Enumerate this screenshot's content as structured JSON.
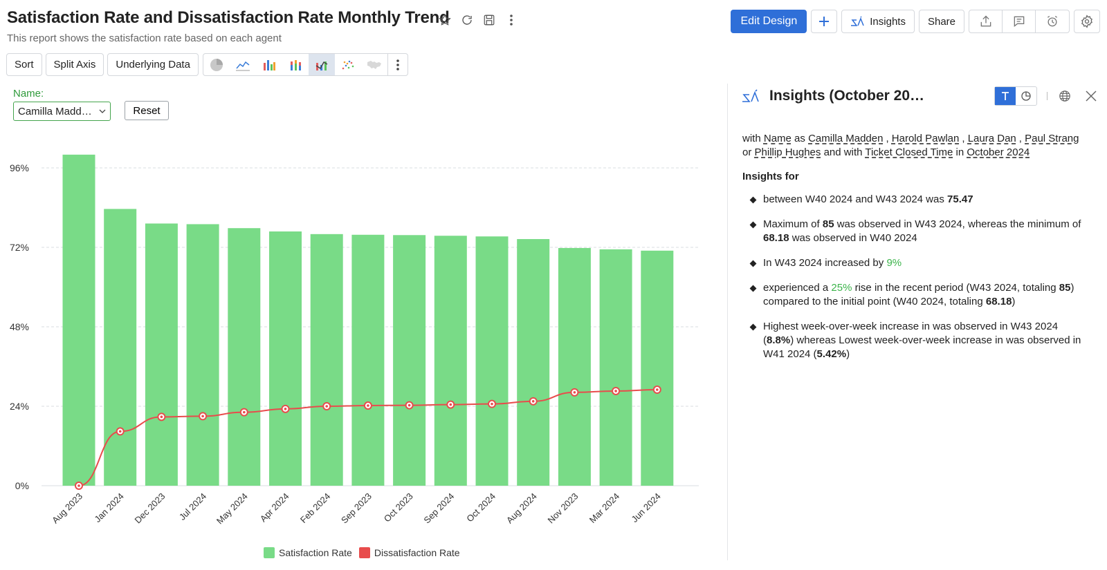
{
  "header": {
    "title": "Satisfaction Rate and Dissatisfaction Rate Monthly Trend",
    "subtitle": "This report shows the satisfaction rate based on each agent",
    "edit_design": "Edit Design",
    "add": "+",
    "insights": "Insights",
    "share": "Share"
  },
  "toolbar": {
    "sort": "Sort",
    "split_axis": "Split Axis",
    "underlying_data": "Underlying Data",
    "chart_types": [
      "pie-chart-icon",
      "line-chart-icon",
      "bar-chart-icon",
      "stacked-bar-chart-icon",
      "combo-chart-icon",
      "scatter-chart-icon",
      "map-chart-icon"
    ],
    "active_chart_type": "combo-chart-icon"
  },
  "filter": {
    "label": "Name:",
    "value": "Camilla Madd…",
    "reset": "Reset"
  },
  "chart_data": {
    "type": "bar",
    "categories": [
      "Aug 2023",
      "Jan 2024",
      "Dec 2023",
      "Jul 2024",
      "May 2024",
      "Apr 2024",
      "Feb 2024",
      "Sep 2023",
      "Oct 2023",
      "Sep 2024",
      "Oct 2024",
      "Aug 2024",
      "Nov 2023",
      "Mar 2024",
      "Jun 2024"
    ],
    "series": [
      {
        "name": "Satisfaction Rate",
        "type": "bar",
        "color": "#79db87",
        "values": [
          100,
          83.6,
          79.2,
          79.0,
          77.8,
          76.8,
          76.0,
          75.8,
          75.7,
          75.5,
          75.3,
          74.5,
          71.8,
          71.4,
          71.0
        ]
      },
      {
        "name": "Dissatisfaction Rate",
        "type": "line",
        "color": "#e84c4c",
        "values": [
          0,
          16.4,
          20.8,
          21.0,
          22.2,
          23.2,
          24.0,
          24.2,
          24.3,
          24.5,
          24.7,
          25.5,
          28.2,
          28.6,
          29.0
        ]
      }
    ],
    "yticks": [
      "0%",
      "24%",
      "48%",
      "72%",
      "96%"
    ],
    "ylim": [
      0,
      100
    ],
    "grid": true,
    "legend": "bottom-center"
  },
  "insights": {
    "title": "Insights (October 20…",
    "context": {
      "with": "with",
      "name_field": "Name",
      "as": "as",
      "n1": "Camilla Madden",
      "comma": ",",
      "n2": "Harold Pawlan",
      "n3": "Laura Dan",
      "n4": "Paul Strang",
      "or": "or",
      "n5": "Phillip Hughes",
      "and_with": "and with",
      "time_field": "Ticket Closed Time",
      "in": "in",
      "period": "October 2024"
    },
    "insights_for": "Insights for",
    "i1": {
      "text": "between W40 2024 and W43 2024 was",
      "value": "75.47"
    },
    "i2": {
      "a": "Maximum of",
      "max": "85",
      "b": "was observed in W43 2024, whereas the minimum of",
      "min": "68.18",
      "c": "was observed in W40 2024"
    },
    "i3": {
      "a": "In W43 2024 increased by",
      "pct": "9%"
    },
    "i4": {
      "a": "experienced a",
      "pct": "25%",
      "b": "rise in the recent period (W43 2024, totaling",
      "v1": "85",
      "c": ") compared to the initial point (W40 2024, totaling",
      "v2": "68.18",
      "d": ")"
    },
    "i5": {
      "a": "Highest week-over-week increase in was observed in W43 2024 (",
      "v1": "8.8%",
      "b": ") whereas Lowest week-over-week increase in was observed in W41 2024 (",
      "v2": "5.42%",
      "c": ")"
    }
  },
  "colors": {
    "accent": "#2f6fd8",
    "bar": "#79db87",
    "line": "#e84c4c",
    "positive": "#3cb44b",
    "filter": "#43a44c"
  }
}
